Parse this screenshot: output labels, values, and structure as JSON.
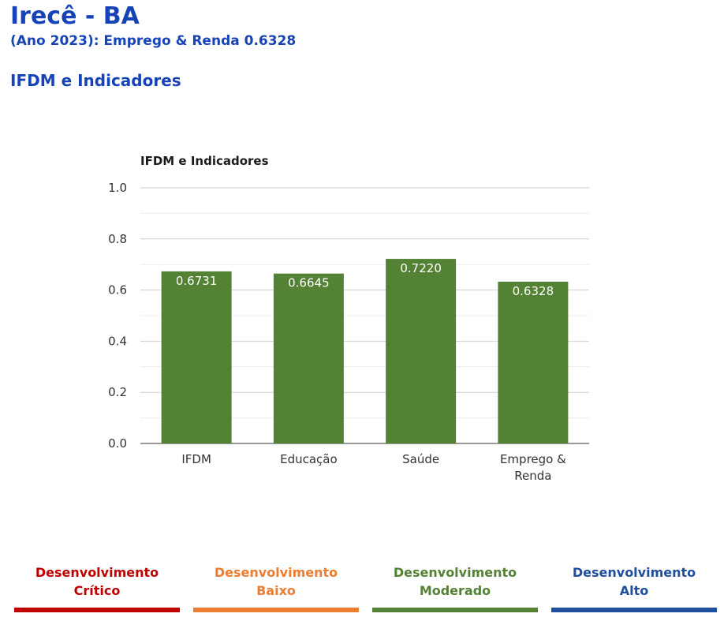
{
  "header": {
    "title": "Irecê - BA",
    "subtitle": "(Ano 2023): Emprego & Renda 0.6328",
    "section": "IFDM e Indicadores"
  },
  "chart_data": {
    "type": "bar",
    "title": "IFDM e Indicadores",
    "categories": [
      [
        "IFDM"
      ],
      [
        "Educação"
      ],
      [
        "Saúde"
      ],
      [
        "Emprego &",
        "Renda"
      ]
    ],
    "values": [
      0.6731,
      0.6645,
      0.722,
      0.6328
    ],
    "value_labels": [
      "0.6731",
      "0.6645",
      "0.7220",
      "0.6328"
    ],
    "ylim": [
      0,
      1
    ],
    "yticks": [
      0.0,
      0.2,
      0.4,
      0.6,
      0.8,
      1.0
    ],
    "ytick_labels": [
      "0.0",
      "0.2",
      "0.4",
      "0.6",
      "0.8",
      "1.0"
    ],
    "grid": true,
    "bar_color": "#548235"
  },
  "legend": [
    {
      "line1": "Desenvolvimento",
      "line2": "Crítico",
      "color": "#c00000"
    },
    {
      "line1": "Desenvolvimento",
      "line2": "Baixo",
      "color": "#ed7d31"
    },
    {
      "line1": "Desenvolvimento",
      "line2": "Moderado",
      "color": "#548235"
    },
    {
      "line1": "Desenvolvimento",
      "line2": "Alto",
      "color": "#1f4e9c"
    }
  ]
}
